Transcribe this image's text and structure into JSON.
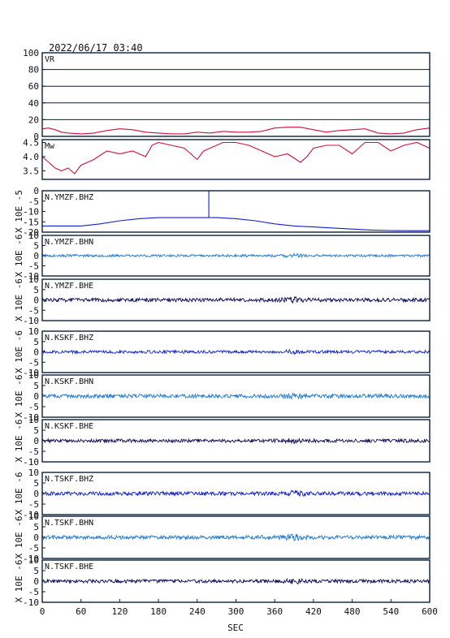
{
  "header": {
    "datetime": "2022/06/17  03:40"
  },
  "colors": {
    "frame": "#0a1f3a",
    "red": "#d0103a",
    "blue": "#1020c8",
    "lightblue": "#1c78d8",
    "navy": "#0a0a5a"
  },
  "chart_data": {
    "type": "line",
    "xlabel": "SEC",
    "xlim": [
      0,
      600
    ],
    "xticks": [
      0,
      60,
      120,
      180,
      240,
      300,
      360,
      420,
      480,
      540,
      600
    ],
    "panels": [
      {
        "label": "VR",
        "ylim": [
          0,
          100
        ],
        "yticks": [
          "0",
          "20",
          "40",
          "60",
          "80",
          "100"
        ],
        "ylabel": "",
        "gridlines": true,
        "color": "red",
        "kind": "series",
        "x": [
          0,
          10,
          20,
          30,
          40,
          60,
          80,
          100,
          120,
          140,
          160,
          180,
          200,
          220,
          240,
          260,
          280,
          300,
          320,
          340,
          360,
          380,
          400,
          420,
          440,
          460,
          480,
          500,
          520,
          540,
          560,
          580,
          600
        ],
        "y": [
          9,
          10,
          8,
          5,
          4,
          3,
          4,
          7,
          9,
          8,
          5,
          4,
          3,
          3,
          5,
          4,
          6,
          5,
          5,
          6,
          10,
          11,
          11,
          8,
          5,
          7,
          8,
          9,
          4,
          3,
          4,
          8,
          10
        ]
      },
      {
        "label": "Mw",
        "ylim": [
          3.2,
          4.6
        ],
        "yticks": [
          "3.5",
          "4.0",
          "4.5"
        ],
        "ylabel": "",
        "gridlines": false,
        "color": "red",
        "kind": "series",
        "x": [
          0,
          10,
          20,
          30,
          40,
          50,
          60,
          80,
          100,
          120,
          140,
          160,
          170,
          180,
          200,
          220,
          240,
          250,
          260,
          280,
          300,
          320,
          340,
          360,
          380,
          400,
          410,
          420,
          440,
          460,
          480,
          500,
          520,
          540,
          560,
          580,
          600
        ],
        "y": [
          4.0,
          3.8,
          3.6,
          3.5,
          3.6,
          3.4,
          3.7,
          3.9,
          4.2,
          4.1,
          4.2,
          4.0,
          4.4,
          4.5,
          4.4,
          4.3,
          3.9,
          4.2,
          4.3,
          4.5,
          4.5,
          4.4,
          4.2,
          4.0,
          4.1,
          3.8,
          4.0,
          4.3,
          4.4,
          4.4,
          4.1,
          4.5,
          4.5,
          4.2,
          4.4,
          4.5,
          4.3
        ]
      },
      {
        "label": "N.YMZF.BHZ",
        "ylim": [
          -20,
          0
        ],
        "yticks": [
          "-20",
          "-15",
          "-10",
          "-5",
          "0"
        ],
        "ylabel": "X 10E -5",
        "gridlines": false,
        "color": "blue",
        "kind": "series",
        "x": [
          0,
          30,
          60,
          90,
          120,
          150,
          180,
          210,
          240,
          258,
          258,
          258,
          270,
          300,
          330,
          360,
          390,
          420,
          450,
          480,
          510,
          540,
          570,
          600
        ],
        "y": [
          -17,
          -17,
          -17,
          -16,
          -14.5,
          -13.5,
          -13,
          -13,
          -13,
          -13,
          0,
          -13,
          -13,
          -13.5,
          -14.5,
          -16,
          -17,
          -17.5,
          -18,
          -18.5,
          -19,
          -19.2,
          -19.3,
          -19.3
        ]
      },
      {
        "label": "N.YMZF.BHN",
        "ylim": [
          -10,
          10
        ],
        "yticks": [
          "-10",
          "-5",
          "0",
          "5",
          "10"
        ],
        "ylabel": "X 10E -6",
        "gridlines": false,
        "color": "lightblue",
        "kind": "noise",
        "noise_amp": 0.6
      },
      {
        "label": "N.YMZF.BHE",
        "ylim": [
          -10,
          10
        ],
        "yticks": [
          "-10",
          "-5",
          "0",
          "5",
          "10"
        ],
        "ylabel": "X 10E -6",
        "gridlines": false,
        "color": "navy",
        "kind": "noise",
        "noise_amp": 0.9
      },
      {
        "label": "N.KSKF.BHZ",
        "ylim": [
          -10,
          10
        ],
        "yticks": [
          "-10",
          "-5",
          "0",
          "5",
          "10"
        ],
        "ylabel": "X 10E -6",
        "gridlines": false,
        "color": "blue",
        "kind": "noise",
        "noise_amp": 0.7
      },
      {
        "label": "N.KSKF.BHN",
        "ylim": [
          -10,
          10
        ],
        "yticks": [
          "-10",
          "-5",
          "0",
          "5",
          "10"
        ],
        "ylabel": "X 10E -6",
        "gridlines": false,
        "color": "lightblue",
        "kind": "noise",
        "noise_amp": 0.9
      },
      {
        "label": "N.KSKF.BHE",
        "ylim": [
          -10,
          10
        ],
        "yticks": [
          "-10",
          "-5",
          "0",
          "5",
          "10"
        ],
        "ylabel": "X 10E -6",
        "gridlines": false,
        "color": "navy",
        "kind": "noise",
        "noise_amp": 0.8
      },
      {
        "label": "N.TSKF.BHZ",
        "ylim": [
          -10,
          10
        ],
        "yticks": [
          "-10",
          "-5",
          "0",
          "5",
          "10"
        ],
        "ylabel": "X 10E -6",
        "gridlines": false,
        "color": "blue",
        "kind": "noise",
        "noise_amp": 0.9
      },
      {
        "label": "N.TSKF.BHN",
        "ylim": [
          -10,
          10
        ],
        "yticks": [
          "-10",
          "-5",
          "0",
          "5",
          "10"
        ],
        "ylabel": "X 10E -6",
        "gridlines": false,
        "color": "lightblue",
        "kind": "noise",
        "noise_amp": 0.9
      },
      {
        "label": "N.TSKF.BHE",
        "ylim": [
          -10,
          10
        ],
        "yticks": [
          "-10",
          "-5",
          "0",
          "5",
          "10"
        ],
        "ylabel": "X 10E -6",
        "gridlines": false,
        "color": "navy",
        "kind": "noise",
        "noise_amp": 0.8
      }
    ]
  }
}
